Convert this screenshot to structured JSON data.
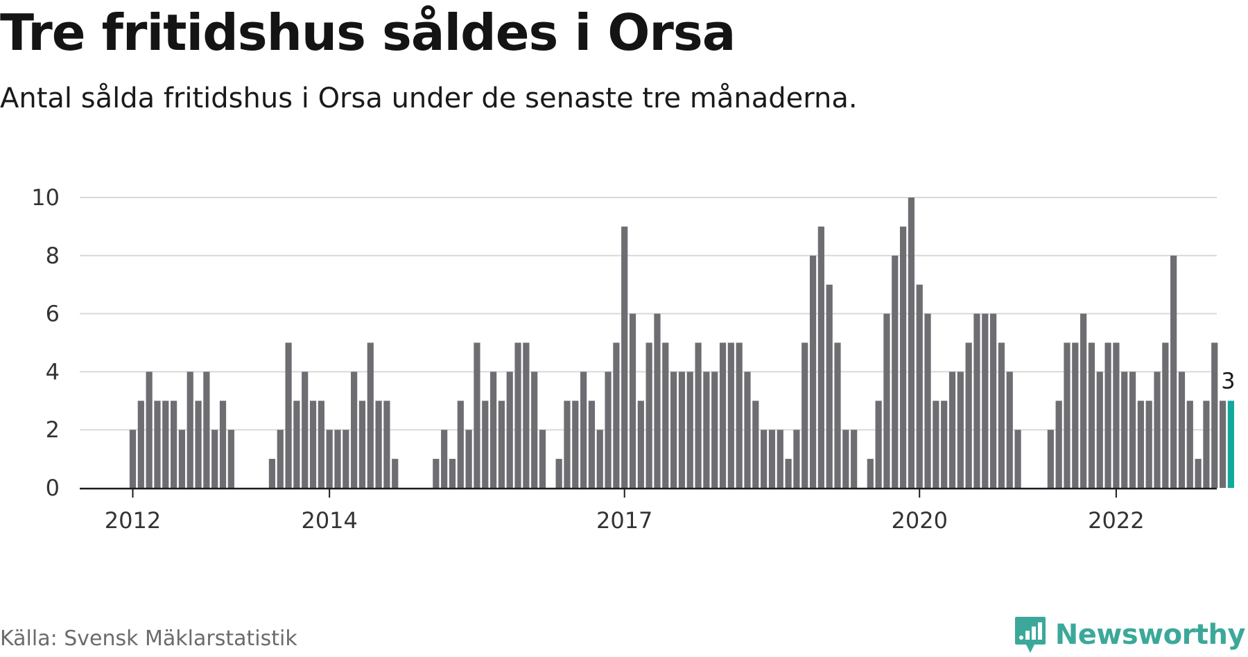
{
  "title": "Tre fritidshus såldes i Orsa",
  "subtitle": "Antal sålda fritidshus i Orsa under de senaste tre månaderna.",
  "source": "Källa: Svensk Mäklarstatistik",
  "brand": {
    "name": "Newsworthy",
    "icon": "newsworthy-logo-icon"
  },
  "colors": {
    "bar": "#6e6d72",
    "highlight": "#12a89b",
    "grid": "#d9d9d9",
    "axis": "#1a1a1a",
    "brand": "#3ba89a"
  },
  "chart_data": {
    "type": "bar",
    "title": "Tre fritidshus såldes i Orsa",
    "subtitle": "Antal sålda fritidshus i Orsa under de senaste tre månaderna.",
    "xlabel": "",
    "ylabel": "",
    "ylim": [
      0,
      10
    ],
    "yticks": [
      "0",
      "2",
      "4",
      "6",
      "8",
      "10"
    ],
    "grid": true,
    "legend": "none",
    "xticks": [
      {
        "label": "2012",
        "month": "2012-01"
      },
      {
        "label": "2014",
        "month": "2014-01"
      },
      {
        "label": "2017",
        "month": "2017-01"
      },
      {
        "label": "2020",
        "month": "2020-01"
      },
      {
        "label": "2022",
        "month": "2022-01"
      }
    ],
    "highlight": {
      "month": "2023-03",
      "value": 3,
      "label": "3"
    },
    "series": [
      {
        "values": [
          [
            "2012-01",
            2
          ],
          [
            "2012-02",
            3
          ],
          [
            "2012-03",
            4
          ],
          [
            "2012-04",
            3
          ],
          [
            "2012-05",
            3
          ],
          [
            "2012-06",
            3
          ],
          [
            "2012-07",
            2
          ],
          [
            "2012-08",
            4
          ],
          [
            "2012-09",
            3
          ],
          [
            "2012-10",
            4
          ],
          [
            "2012-11",
            2
          ],
          [
            "2012-12",
            3
          ],
          [
            "2013-01",
            2
          ],
          [
            "2013-06",
            1
          ],
          [
            "2013-07",
            2
          ],
          [
            "2013-08",
            5
          ],
          [
            "2013-09",
            3
          ],
          [
            "2013-10",
            4
          ],
          [
            "2013-11",
            3
          ],
          [
            "2013-12",
            3
          ],
          [
            "2014-01",
            2
          ],
          [
            "2014-02",
            2
          ],
          [
            "2014-03",
            2
          ],
          [
            "2014-04",
            4
          ],
          [
            "2014-05",
            3
          ],
          [
            "2014-06",
            5
          ],
          [
            "2014-07",
            3
          ],
          [
            "2014-08",
            3
          ],
          [
            "2014-09",
            1
          ],
          [
            "2015-02",
            1
          ],
          [
            "2015-03",
            2
          ],
          [
            "2015-04",
            1
          ],
          [
            "2015-05",
            3
          ],
          [
            "2015-06",
            2
          ],
          [
            "2015-07",
            5
          ],
          [
            "2015-08",
            3
          ],
          [
            "2015-09",
            4
          ],
          [
            "2015-10",
            3
          ],
          [
            "2015-11",
            4
          ],
          [
            "2015-12",
            5
          ],
          [
            "2016-01",
            5
          ],
          [
            "2016-02",
            4
          ],
          [
            "2016-03",
            2
          ],
          [
            "2016-05",
            1
          ],
          [
            "2016-06",
            3
          ],
          [
            "2016-07",
            3
          ],
          [
            "2016-08",
            4
          ],
          [
            "2016-09",
            3
          ],
          [
            "2016-10",
            2
          ],
          [
            "2016-11",
            4
          ],
          [
            "2016-12",
            5
          ],
          [
            "2017-01",
            9
          ],
          [
            "2017-02",
            6
          ],
          [
            "2017-03",
            3
          ],
          [
            "2017-04",
            5
          ],
          [
            "2017-05",
            6
          ],
          [
            "2017-06",
            5
          ],
          [
            "2017-07",
            4
          ],
          [
            "2017-08",
            4
          ],
          [
            "2017-09",
            4
          ],
          [
            "2017-10",
            5
          ],
          [
            "2017-11",
            4
          ],
          [
            "2017-12",
            4
          ],
          [
            "2018-01",
            5
          ],
          [
            "2018-02",
            5
          ],
          [
            "2018-03",
            5
          ],
          [
            "2018-04",
            4
          ],
          [
            "2018-05",
            3
          ],
          [
            "2018-06",
            2
          ],
          [
            "2018-07",
            2
          ],
          [
            "2018-08",
            2
          ],
          [
            "2018-09",
            1
          ],
          [
            "2018-10",
            2
          ],
          [
            "2018-11",
            5
          ],
          [
            "2018-12",
            8
          ],
          [
            "2019-01",
            9
          ],
          [
            "2019-02",
            7
          ],
          [
            "2019-03",
            5
          ],
          [
            "2019-04",
            2
          ],
          [
            "2019-05",
            2
          ],
          [
            "2019-07",
            1
          ],
          [
            "2019-08",
            3
          ],
          [
            "2019-09",
            6
          ],
          [
            "2019-10",
            8
          ],
          [
            "2019-11",
            9
          ],
          [
            "2019-12",
            10
          ],
          [
            "2020-01",
            7
          ],
          [
            "2020-02",
            6
          ],
          [
            "2020-03",
            3
          ],
          [
            "2020-04",
            3
          ],
          [
            "2020-05",
            4
          ],
          [
            "2020-06",
            4
          ],
          [
            "2020-07",
            5
          ],
          [
            "2020-08",
            6
          ],
          [
            "2020-09",
            6
          ],
          [
            "2020-10",
            6
          ],
          [
            "2020-11",
            5
          ],
          [
            "2020-12",
            4
          ],
          [
            "2021-01",
            2
          ],
          [
            "2021-05",
            2
          ],
          [
            "2021-06",
            3
          ],
          [
            "2021-07",
            5
          ],
          [
            "2021-08",
            5
          ],
          [
            "2021-09",
            6
          ],
          [
            "2021-10",
            5
          ],
          [
            "2021-11",
            4
          ],
          [
            "2021-12",
            5
          ],
          [
            "2022-01",
            5
          ],
          [
            "2022-02",
            4
          ],
          [
            "2022-03",
            4
          ],
          [
            "2022-04",
            3
          ],
          [
            "2022-05",
            3
          ],
          [
            "2022-06",
            4
          ],
          [
            "2022-07",
            5
          ],
          [
            "2022-08",
            8
          ],
          [
            "2022-09",
            4
          ],
          [
            "2022-10",
            3
          ],
          [
            "2022-11",
            1
          ],
          [
            "2022-12",
            3
          ],
          [
            "2023-01",
            5
          ],
          [
            "2023-02",
            3
          ],
          [
            "2023-03",
            3
          ]
        ]
      }
    ]
  }
}
